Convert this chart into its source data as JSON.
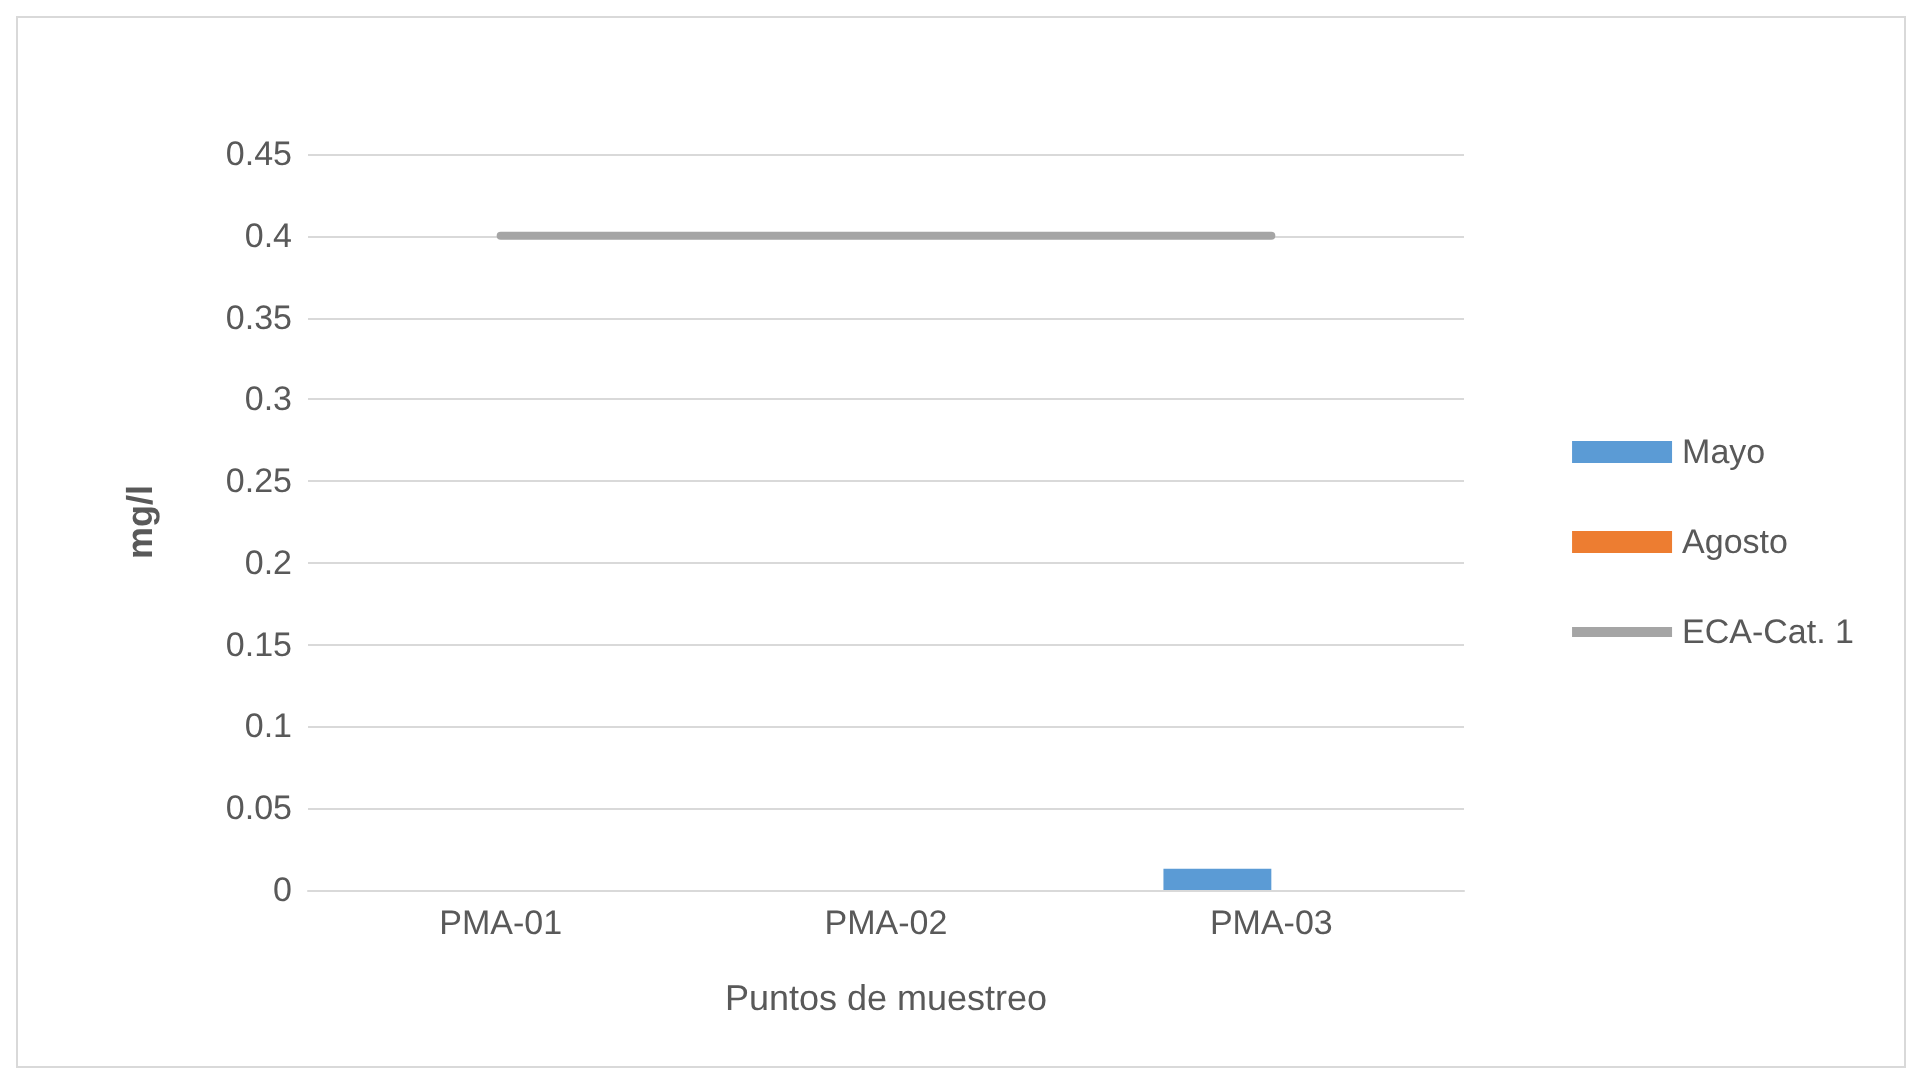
{
  "chart_data": {
    "type": "bar",
    "xlabel": "Puntos de muestreo",
    "ylabel": "mg/l",
    "categories": [
      "PMA-01",
      "PMA-02",
      "PMA-03"
    ],
    "series": [
      {
        "name": "Mayo",
        "color": "#5b9bd5",
        "values": [
          0,
          0,
          0.013
        ]
      },
      {
        "name": "Agosto",
        "color": "#ed7d31",
        "values": [
          0,
          0,
          0
        ]
      },
      {
        "name": "ECA-Cat. 1",
        "type": "line",
        "color": "#a5a5a5",
        "values": [
          0.4,
          0.4,
          0.4
        ]
      }
    ],
    "ylim": [
      0,
      0.45
    ],
    "yticks": [
      0,
      0.05,
      0.1,
      0.15,
      0.2,
      0.25,
      0.3,
      0.35,
      0.4,
      0.45
    ],
    "grid": "y",
    "legend": "right",
    "marker": "none"
  }
}
